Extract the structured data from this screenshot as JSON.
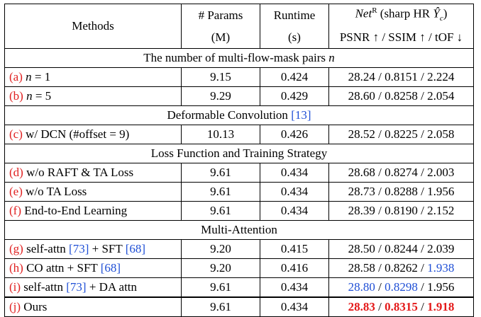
{
  "header": {
    "methods": "Methods",
    "params_line1": "# Params",
    "params_line2": "(M)",
    "runtime_line1": "Runtime",
    "runtime_line2": "(s)",
    "net_name": "Net",
    "net_sup": "R",
    "net_desc_pre": " (sharp HR ",
    "net_desc_sym": "Ŷ",
    "net_desc_sub": "c",
    "net_desc_post": ")",
    "metrics": "PSNR ↑ / SSIM ↑ / tOF ↓"
  },
  "sections": [
    {
      "title_text": "The number of multi-flow-mask pairs ",
      "title_var": "n",
      "rows": [
        {
          "tag": "(a)",
          "label_pre": " ",
          "label_var": "n",
          "label_post": " = 1",
          "params": "9.15",
          "runtime": "0.424",
          "psnr": "28.24",
          "ssim": "0.8151",
          "tof": "2.224"
        },
        {
          "tag": "(b)",
          "label_pre": " ",
          "label_var": "n",
          "label_post": " = 5",
          "params": "9.29",
          "runtime": "0.429",
          "psnr": "28.60",
          "ssim": "0.8258",
          "tof": "2.054"
        }
      ]
    },
    {
      "title_text": "Deformable Convolution ",
      "title_ref": "[13]",
      "rows": [
        {
          "tag": "(c)",
          "label_pre": " w/ DCN (#offset = 9)",
          "params": "10.13",
          "runtime": "0.426",
          "psnr": "28.52",
          "ssim": "0.8225",
          "tof": "2.058"
        }
      ]
    },
    {
      "title_text": "Loss Function and Training Strategy",
      "rows": [
        {
          "tag": "(d)",
          "label_pre": " w/o RAFT & TA Loss",
          "params": "9.61",
          "runtime": "0.434",
          "psnr": "28.68",
          "ssim": "0.8274",
          "tof": "2.003"
        },
        {
          "tag": "(e)",
          "label_pre": " w/o TA Loss",
          "params": "9.61",
          "runtime": "0.434",
          "psnr": "28.73",
          "ssim": "0.8288",
          "tof": "1.956"
        },
        {
          "tag": "(f)",
          "label_pre": " End-to-End Learning",
          "params": "9.61",
          "runtime": "0.434",
          "psnr": "28.39",
          "ssim": "0.8190",
          "tof": "2.152"
        }
      ]
    },
    {
      "title_text": "Multi-Attention",
      "rows": [
        {
          "tag": "(g)",
          "label_pre": " self-attn ",
          "ref1": "[73]",
          "label_mid": " + SFT ",
          "ref2": "[68]",
          "params": "9.20",
          "runtime": "0.415",
          "psnr": "28.50",
          "ssim": "0.8244",
          "tof": "2.039"
        },
        {
          "tag": "(h)",
          "label_pre": " CO attn + SFT ",
          "ref2": "[68]",
          "params": "9.20",
          "runtime": "0.416",
          "psnr": "28.58",
          "ssim": "0.8262",
          "tof": "1.938"
        },
        {
          "tag": "(i)",
          "label_pre": " self-attn ",
          "ref1": "[73]",
          "label_mid": " + DA attn",
          "params": "9.61",
          "runtime": "0.434",
          "psnr": "28.80",
          "ssim": "0.8298",
          "tof": "1.956"
        }
      ]
    }
  ],
  "ours": {
    "tag": "(j)",
    "label": " Ours",
    "params": "9.61",
    "runtime": "0.434",
    "psnr": "28.83",
    "ssim": "0.8315",
    "tof": "1.918"
  },
  "separator": " / ",
  "colors": {
    "tag": "#e02020",
    "ref": "#1f4fd6",
    "best": "#e41a1a",
    "second": "#1f4fd6"
  }
}
